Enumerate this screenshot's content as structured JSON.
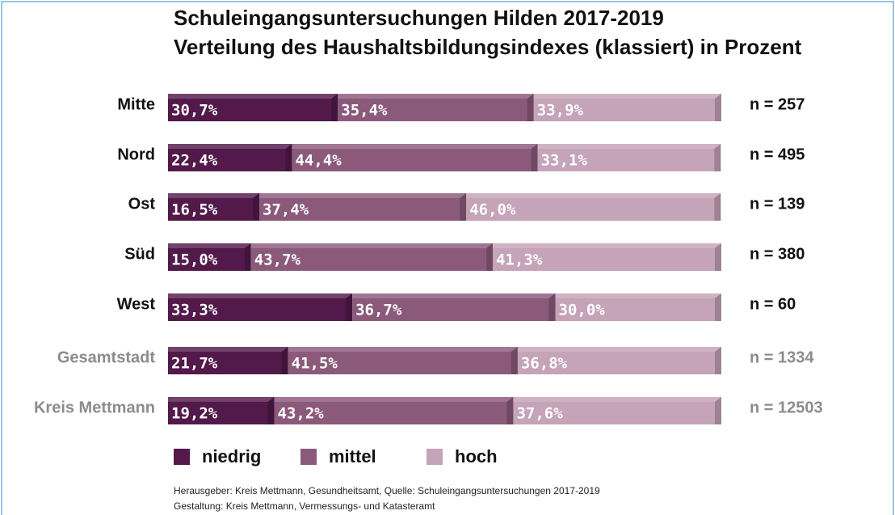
{
  "chart_data": {
    "type": "stacked-barh",
    "title": "Schuleingangsuntersuchungen Hilden 2017-2019",
    "subtitle": "Verteilung des Haushaltsbildungsindexes (klassiert) in Prozent",
    "categories": [
      "Mitte",
      "Nord",
      "Ost",
      "Süd",
      "West",
      "Gesamtstadt",
      "Kreis Mettmann"
    ],
    "annotations": [
      "n = 257",
      "n = 495",
      "n = 139",
      "n = 380",
      "n = 60",
      "n = 1334",
      "n = 12503"
    ],
    "series": [
      {
        "name": "niedrig",
        "color": "#52194a",
        "values": [
          30.7,
          22.4,
          16.5,
          15.0,
          33.3,
          21.7,
          19.2
        ],
        "value_labels": [
          "30,7%",
          "22,4%",
          "16,5%",
          "15,0%",
          "33,3%",
          "21,7%",
          "19,2%"
        ]
      },
      {
        "name": "mittel",
        "color": "#8b5a7b",
        "values": [
          35.4,
          44.4,
          37.4,
          43.7,
          36.7,
          41.5,
          43.2
        ],
        "value_labels": [
          "35,4%",
          "44,4%",
          "37,4%",
          "43,7%",
          "36,7%",
          "41,5%",
          "43,2%"
        ]
      },
      {
        "name": "hoch",
        "color": "#c5a3b8",
        "values": [
          33.9,
          33.1,
          46.0,
          41.3,
          30.0,
          36.8,
          37.6
        ],
        "value_labels": [
          "33,9%",
          "33,1%",
          "46,0%",
          "41,3%",
          "30,0%",
          "36,8%",
          "37,6%"
        ]
      }
    ],
    "xlim": [
      0,
      100
    ],
    "source": [
      "Herausgeber: Kreis Mettmann, Gesundheitsamt, Quelle: Schuleingangsuntersuchungen 2017-2019",
      "Gestaltung: Kreis Mettmann, Vermessungs- und Katasteramt"
    ]
  }
}
